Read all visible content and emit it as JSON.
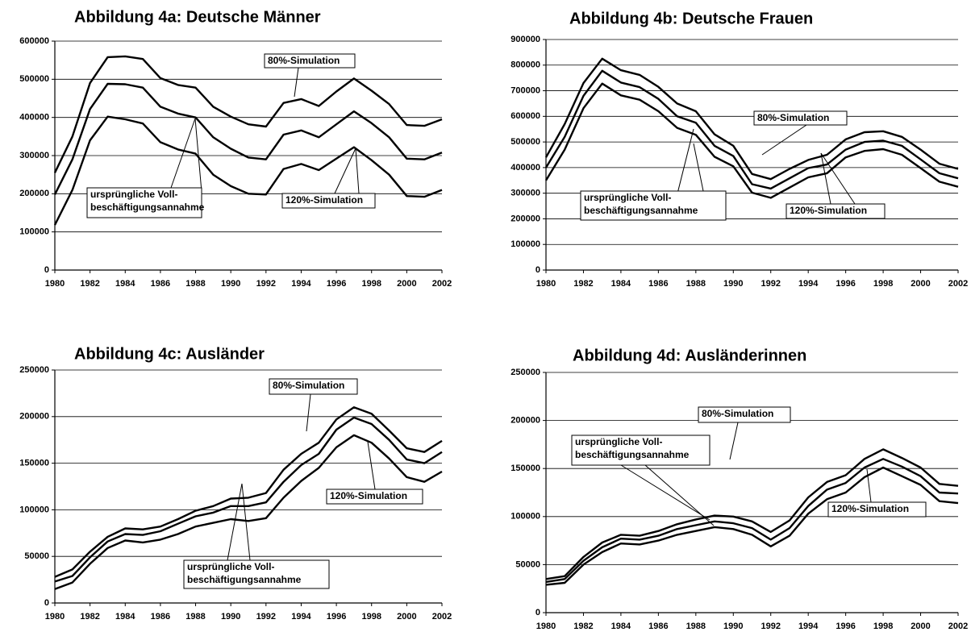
{
  "chart_data": [
    {
      "type": "line",
      "title": "Abbildung 4a: Deutsche Männer",
      "x": [
        1980,
        1981,
        1982,
        1983,
        1984,
        1985,
        1986,
        1987,
        1988,
        1989,
        1990,
        1991,
        1992,
        1993,
        1994,
        1995,
        1996,
        1997,
        1998,
        1999,
        2000,
        2001,
        2002
      ],
      "xlim": [
        1980,
        2002
      ],
      "xticks": [
        1980,
        1982,
        1984,
        1986,
        1988,
        1990,
        1992,
        1994,
        1996,
        1998,
        2000,
        2002
      ],
      "ylim": [
        0,
        600000
      ],
      "yticks": [
        0,
        100000,
        200000,
        300000,
        400000,
        500000,
        600000
      ],
      "grid": true,
      "series": [
        {
          "color": "#000000",
          "values": [
            255000,
            350000,
            490000,
            558000,
            560000,
            553000,
            503000,
            485000,
            478000,
            428000,
            402000,
            382000,
            376000,
            438000,
            448000,
            430000,
            468000,
            502000,
            470000,
            435000,
            380000,
            378000,
            395000
          ]
        },
        {
          "color": "#000000",
          "values": [
            198000,
            290000,
            422000,
            488000,
            487000,
            478000,
            428000,
            410000,
            400000,
            348000,
            318000,
            295000,
            290000,
            355000,
            366000,
            348000,
            382000,
            416000,
            385000,
            348000,
            292000,
            290000,
            308000
          ]
        },
        {
          "color": "#000000",
          "values": [
            118000,
            210000,
            340000,
            402000,
            395000,
            384000,
            335000,
            316000,
            305000,
            250000,
            220000,
            200000,
            198000,
            265000,
            278000,
            262000,
            292000,
            322000,
            288000,
            250000,
            194000,
            192000,
            210000
          ]
        }
      ],
      "annotations": [
        [
          "80%-Simulation"
        ],
        [
          "ursprüngliche  Voll-",
          "beschäftigungsannahme"
        ],
        [
          "120%-Simulation"
        ]
      ]
    },
    {
      "type": "line",
      "title": "Abbildung 4b: Deutsche Frauen",
      "x": [
        1980,
        1981,
        1982,
        1983,
        1984,
        1985,
        1986,
        1987,
        1988,
        1989,
        1990,
        1991,
        1992,
        1993,
        1994,
        1995,
        1996,
        1997,
        1998,
        1999,
        2000,
        2001,
        2002
      ],
      "xlim": [
        1980,
        2002
      ],
      "xticks": [
        1980,
        1982,
        1984,
        1986,
        1988,
        1990,
        1992,
        1994,
        1996,
        1998,
        2000,
        2002
      ],
      "ylim": [
        0,
        900000
      ],
      "yticks": [
        0,
        100000,
        200000,
        300000,
        400000,
        500000,
        600000,
        700000,
        800000,
        900000
      ],
      "grid": true,
      "series": [
        {
          "color": "#000000",
          "values": [
            440000,
            570000,
            730000,
            825000,
            780000,
            762000,
            715000,
            650000,
            620000,
            530000,
            485000,
            375000,
            355000,
            395000,
            430000,
            450000,
            510000,
            538000,
            542000,
            520000,
            470000,
            415000,
            395000
          ]
        },
        {
          "color": "#000000",
          "values": [
            400000,
            520000,
            680000,
            778000,
            732000,
            714000,
            668000,
            600000,
            575000,
            485000,
            445000,
            335000,
            318000,
            358000,
            398000,
            412000,
            470000,
            500000,
            505000,
            485000,
            432000,
            378000,
            358000
          ]
        },
        {
          "color": "#000000",
          "values": [
            350000,
            470000,
            632000,
            728000,
            682000,
            665000,
            620000,
            555000,
            528000,
            442000,
            405000,
            302000,
            282000,
            322000,
            362000,
            378000,
            440000,
            465000,
            472000,
            450000,
            398000,
            345000,
            325000
          ]
        }
      ],
      "annotations": [
        [
          "80%-Simulation"
        ],
        [
          "ursprüngliche  Voll-",
          "beschäftigungsannahme"
        ],
        [
          "120%-Simulation"
        ]
      ]
    },
    {
      "type": "line",
      "title": "Abbildung 4c: Ausländer",
      "x": [
        1980,
        1981,
        1982,
        1983,
        1984,
        1985,
        1986,
        1987,
        1988,
        1989,
        1990,
        1991,
        1992,
        1993,
        1994,
        1995,
        1996,
        1997,
        1998,
        1999,
        2000,
        2001,
        2002
      ],
      "xlim": [
        1980,
        2002
      ],
      "xticks": [
        1980,
        1982,
        1984,
        1986,
        1988,
        1990,
        1992,
        1994,
        1996,
        1998,
        2000,
        2002
      ],
      "ylim": [
        0,
        250000
      ],
      "yticks": [
        0,
        50000,
        100000,
        150000,
        200000,
        250000
      ],
      "grid": true,
      "series": [
        {
          "color": "#000000",
          "values": [
            28000,
            36000,
            55000,
            71000,
            80000,
            79000,
            82000,
            90000,
            99000,
            104000,
            112000,
            113000,
            118000,
            143000,
            160000,
            172000,
            197000,
            210000,
            203000,
            185000,
            166000,
            162000,
            174000
          ]
        },
        {
          "color": "#000000",
          "values": [
            23000,
            29000,
            49000,
            66000,
            74000,
            73000,
            77000,
            85000,
            93000,
            97000,
            104000,
            104000,
            108000,
            130000,
            148000,
            160000,
            186000,
            199000,
            192000,
            175000,
            154000,
            150000,
            162000
          ]
        },
        {
          "color": "#000000",
          "values": [
            15000,
            22000,
            42000,
            59000,
            67000,
            65000,
            68000,
            74000,
            82000,
            86000,
            90000,
            88000,
            91000,
            113000,
            131000,
            145000,
            167000,
            180000,
            172000,
            155000,
            135000,
            130000,
            141000
          ]
        }
      ],
      "annotations": [
        [
          "80%-Simulation"
        ],
        [
          "ursprüngliche  Voll-",
          "beschäftigungsannahme"
        ],
        [
          "120%-Simulation"
        ]
      ]
    },
    {
      "type": "line",
      "title": "Abbildung 4d: Ausländerinnen",
      "x": [
        1980,
        1981,
        1982,
        1983,
        1984,
        1985,
        1986,
        1987,
        1988,
        1989,
        1990,
        1991,
        1992,
        1993,
        1994,
        1995,
        1996,
        1997,
        1998,
        1999,
        2000,
        2001,
        2002
      ],
      "xlim": [
        1980,
        2002
      ],
      "xticks": [
        1980,
        1982,
        1984,
        1986,
        1988,
        1990,
        1992,
        1994,
        1996,
        1998,
        2000,
        2002
      ],
      "ylim": [
        0,
        250000
      ],
      "yticks": [
        0,
        50000,
        100000,
        150000,
        200000,
        250000
      ],
      "grid": true,
      "series": [
        {
          "color": "#000000",
          "values": [
            35000,
            38000,
            58000,
            73000,
            81000,
            80000,
            85000,
            92000,
            97000,
            101000,
            100000,
            95000,
            84000,
            96000,
            120000,
            136000,
            143000,
            160000,
            170000,
            161000,
            151000,
            134000,
            132000
          ]
        },
        {
          "color": "#000000",
          "values": [
            32000,
            35000,
            54000,
            68000,
            77000,
            76000,
            80000,
            87000,
            91000,
            95000,
            93000,
            88000,
            76000,
            88000,
            111000,
            128000,
            135000,
            151000,
            160000,
            152000,
            142000,
            125000,
            124000
          ]
        },
        {
          "color": "#000000",
          "values": [
            29000,
            31000,
            50000,
            63000,
            72000,
            71000,
            75000,
            81000,
            85000,
            89000,
            87000,
            81000,
            69000,
            80000,
            103000,
            118000,
            125000,
            141000,
            151000,
            142000,
            133000,
            116000,
            114000
          ]
        }
      ],
      "annotations": [
        [
          "80%-Simulation"
        ],
        [
          "ursprüngliche  Voll-",
          "beschäftigungsannahme"
        ],
        [
          "120%-Simulation"
        ]
      ]
    }
  ]
}
